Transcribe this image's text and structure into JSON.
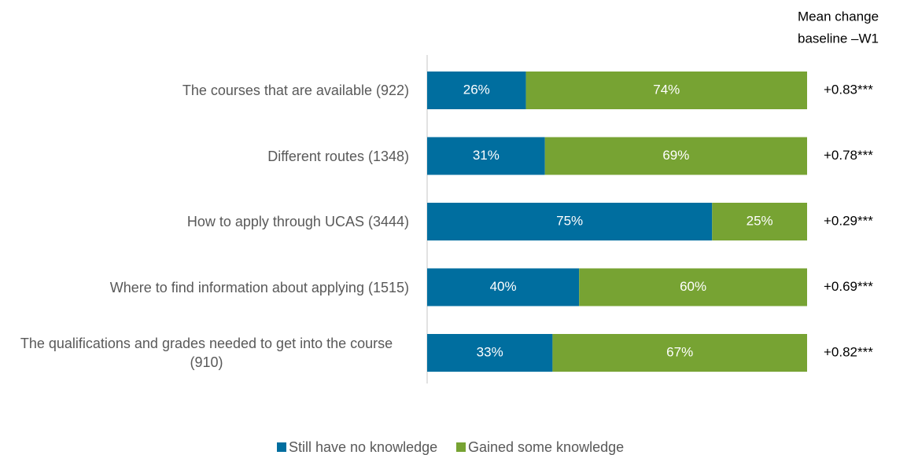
{
  "chart_data": {
    "type": "stacked_bar_horizontal",
    "categories": [
      "The courses that are available (922)",
      "Different routes (1348)",
      "How to apply through UCAS (3444)",
      "Where to find information about applying (1515)",
      "The qualifications and grades needed to get into the course (910)"
    ],
    "series": [
      {
        "name": "Still have no knowledge",
        "color": "#006e9f",
        "values": [
          26,
          31,
          75,
          40,
          33
        ],
        "value_labels": [
          "26%",
          "31%",
          "75%",
          "40%",
          "33%"
        ]
      },
      {
        "name": "Gained some knowledge",
        "color": "#77a333",
        "values": [
          74,
          69,
          25,
          60,
          67
        ],
        "value_labels": [
          "74%",
          "69%",
          "25%",
          "60%",
          "67%"
        ]
      }
    ],
    "xlim": [
      0,
      100
    ],
    "mean_change_title": [
      "Mean change",
      "baseline –W1"
    ],
    "mean_change_labels": [
      "+0.83***",
      "+0.78***",
      "+0.29***",
      "+0.69***",
      "+0.82***"
    ],
    "legend": "bottom"
  }
}
